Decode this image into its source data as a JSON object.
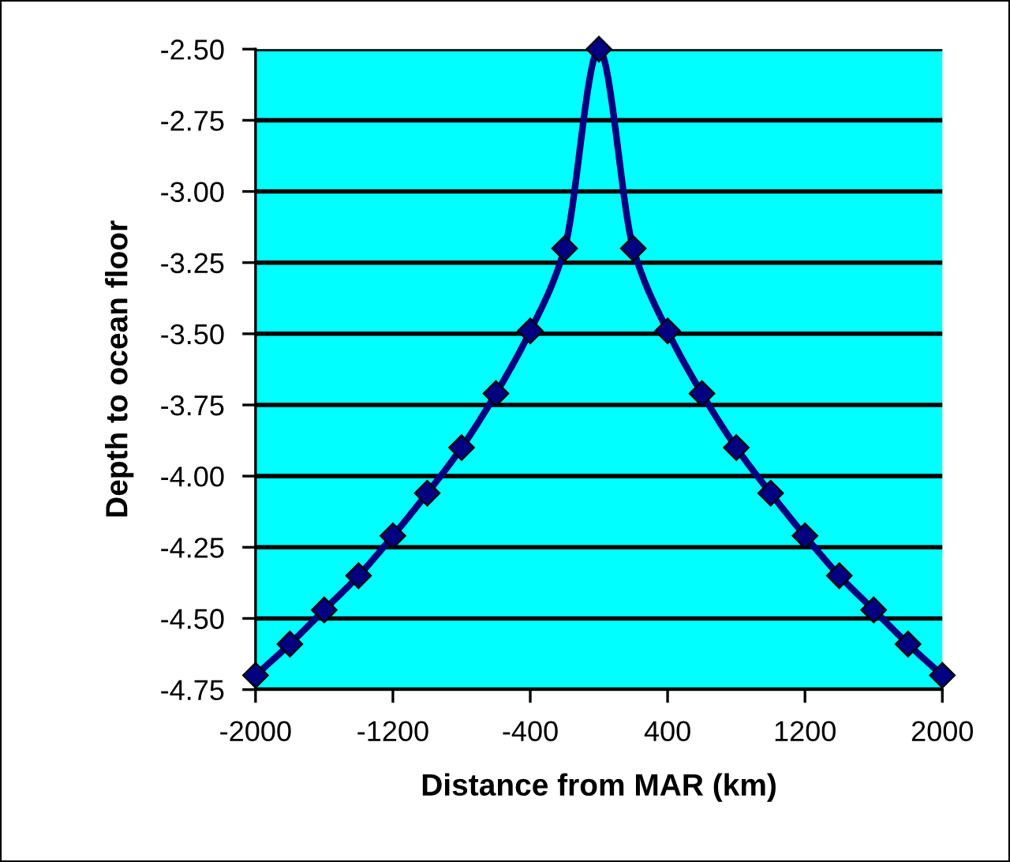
{
  "chart_data": {
    "type": "line",
    "xlabel": "Distance from MAR (km)",
    "ylabel": "Depth to ocean floor",
    "x": [
      -2000,
      -1800,
      -1600,
      -1400,
      -1200,
      -1000,
      -800,
      -600,
      -400,
      -200,
      0,
      200,
      400,
      600,
      800,
      1000,
      1200,
      1400,
      1600,
      1800,
      2000
    ],
    "series": [
      {
        "color": "#000080",
        "values": [
          -4.7,
          -4.59,
          -4.47,
          -4.35,
          -4.21,
          -4.06,
          -3.9,
          -3.71,
          -3.49,
          -3.2,
          -2.5,
          -3.2,
          -3.49,
          -3.71,
          -3.9,
          -4.06,
          -4.21,
          -4.35,
          -4.47,
          -4.59,
          -4.7
        ]
      }
    ],
    "xlim": [
      -2000,
      2000
    ],
    "xticks": [
      -2000,
      -1200,
      -400,
      400,
      1200,
      2000
    ],
    "ylim": [
      -4.75,
      -2.5
    ],
    "yticks": [
      {
        "value": -4.75,
        "label": "-4.75"
      },
      {
        "value": -4.5,
        "label": "-4.50"
      },
      {
        "value": -4.25,
        "label": "-4.25"
      },
      {
        "value": -4.0,
        "label": "-4.00"
      },
      {
        "value": -3.75,
        "label": "-3.75"
      },
      {
        "value": -3.5,
        "label": "-3.50"
      },
      {
        "value": -3.25,
        "label": "-3.25"
      },
      {
        "value": -3.0,
        "label": "-3.00"
      },
      {
        "value": -2.75,
        "label": "-2.75"
      },
      {
        "value": -2.5,
        "label": "-2.50"
      }
    ],
    "grid": "y",
    "marker": "diamond",
    "line_style": "solid"
  }
}
